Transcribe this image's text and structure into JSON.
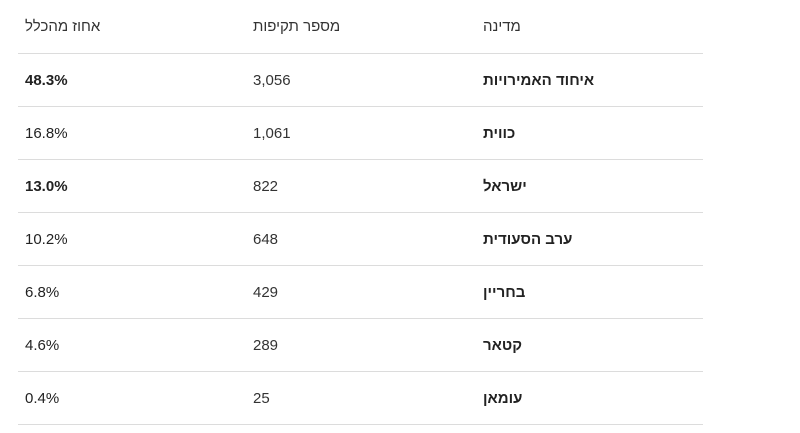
{
  "table": {
    "headers": {
      "percent": "אחוז מהכלל",
      "attacks": "מספר תקיפות",
      "country": "מדינה"
    },
    "rows": [
      {
        "country": "איחוד האמירויות",
        "attacks": "3,056",
        "percent": "48.3%",
        "percent_bold": true
      },
      {
        "country": "כווית",
        "attacks": "1,061",
        "percent": "16.8%",
        "percent_bold": false
      },
      {
        "country": "ישראל",
        "attacks": "822",
        "percent": "13.0%",
        "percent_bold": true
      },
      {
        "country": "ערב הסעודית",
        "attacks": "648",
        "percent": "10.2%",
        "percent_bold": false
      },
      {
        "country": "בחריין",
        "attacks": "429",
        "percent": "6.8%",
        "percent_bold": false
      },
      {
        "country": "קטאר",
        "attacks": "289",
        "percent": "4.6%",
        "percent_bold": false
      },
      {
        "country": "עומאן",
        "attacks": "25",
        "percent": "0.4%",
        "percent_bold": false
      }
    ]
  }
}
